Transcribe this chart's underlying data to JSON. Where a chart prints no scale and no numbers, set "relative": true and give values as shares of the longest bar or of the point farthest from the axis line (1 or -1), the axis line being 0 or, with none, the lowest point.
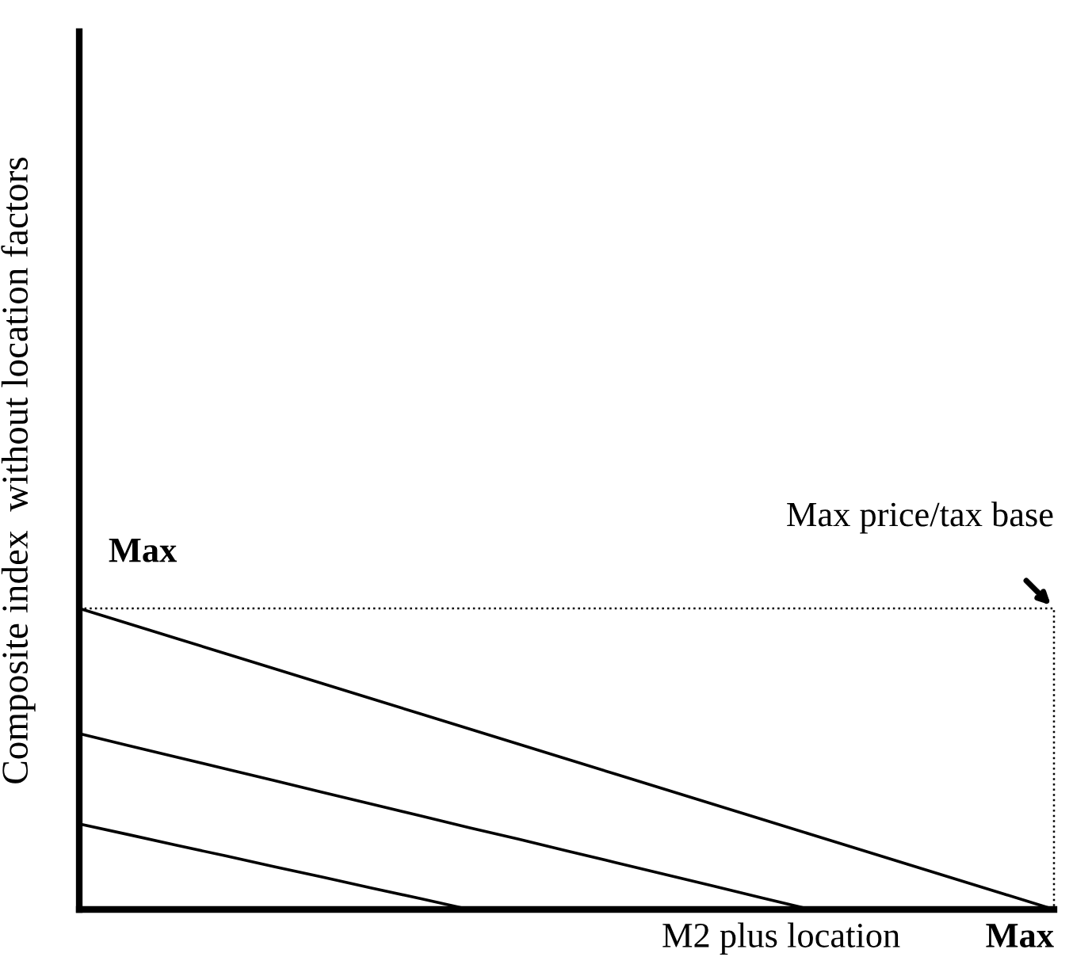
{
  "chart_data": {
    "type": "line",
    "relative": true,
    "xlabel": "M2 plus location",
    "ylabel": "Composite index  without location factors",
    "legend": false,
    "marker": "none",
    "line_style": "solid",
    "categories": [
      null,
      null,
      null,
      null,
      null,
      null,
      null,
      null,
      null,
      null,
      null,
      null,
      null,
      null,
      null,
      null,
      null,
      null,
      null,
      null,
      null
    ],
    "series": [
      {
        "color": "#000000",
        "values": [
          1,
          0.95,
          0.9,
          0.85,
          0.8,
          0.75,
          0.7,
          0.65,
          0.6,
          0.55,
          0.5,
          0.45,
          0.4,
          0.35,
          0.3,
          0.25,
          0.2,
          0.15,
          0.1,
          0.05,
          0
        ]
      },
      {
        "color": "#000000",
        "values": [
          0.584,
          0.545,
          0.506,
          0.467,
          0.428,
          0.389,
          0.35,
          0.311,
          0.272,
          0.234,
          0.195,
          0.156,
          0.117,
          0.078,
          0.039,
          0,
          null,
          null,
          null,
          null,
          null
        ]
      },
      {
        "color": "#000000",
        "values": [
          0.284,
          0.249,
          0.213,
          0.178,
          0.142,
          0.107,
          0.071,
          0.036,
          0,
          null,
          null,
          null,
          null,
          null,
          null,
          null,
          null,
          null,
          null,
          null,
          null
        ]
      }
    ],
    "ref_lines": [
      {
        "axis": "y",
        "value": 1,
        "color": "#000000",
        "line_style": "dotted"
      }
    ],
    "annotations": [
      "Max",
      "Max",
      {
        "text": "Max price/tax base",
        "y": 1
      }
    ]
  }
}
